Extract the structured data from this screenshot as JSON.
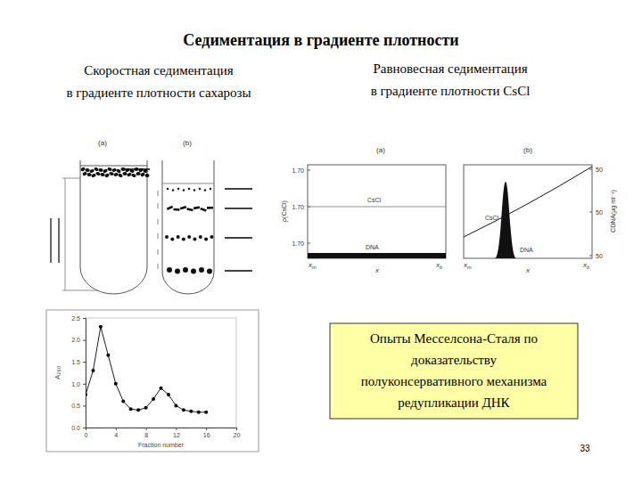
{
  "title": "Седиментация в градиенте плотности",
  "left_heading": [
    "Скоростная седиментация",
    "в градиенте плотности сахарозы"
  ],
  "right_heading": [
    "Равновесная седиментация",
    "в градиенте плотности CsCl"
  ],
  "tubes": {
    "labels": [
      "(a)",
      "(b)"
    ]
  },
  "cscl_panels": [
    {
      "label": "(a)",
      "y_title": "ρ(CsCl)",
      "y_labels": [
        "1.70",
        "1.70",
        "1.70"
      ],
      "x_title": "x",
      "x_left": "xm",
      "x_right": "xb",
      "curve_label": "CsCl",
      "band_label": "DNA"
    },
    {
      "label": "(b)",
      "y2_title": "CDNA(μg ml⁻¹)",
      "y2_labels": [
        "50",
        "50",
        "50"
      ],
      "x_title": "x",
      "x_left": "xm",
      "x_right": "xb",
      "curve_label": "CsCl",
      "band_label": "DNA"
    }
  ],
  "chart_data": {
    "type": "line",
    "x_label": "Fraction number",
    "y_label": "A₂₆₀",
    "x": [
      0,
      1,
      2,
      3,
      4,
      5,
      6,
      7,
      8,
      9,
      10,
      11,
      12,
      13,
      14,
      15,
      16
    ],
    "values": [
      0.75,
      1.3,
      2.3,
      1.65,
      1.0,
      0.6,
      0.42,
      0.4,
      0.45,
      0.65,
      0.9,
      0.75,
      0.5,
      0.4,
      0.37,
      0.35,
      0.35
    ],
    "xlim": [
      0,
      20
    ],
    "xticks": [
      0,
      4,
      8,
      12,
      16,
      20
    ],
    "ylim": [
      0,
      2.5
    ],
    "yticks": [
      {
        "value": 0,
        "label": "0.0"
      },
      0.5,
      {
        "value": 1,
        "label": "1.0"
      },
      1.5,
      {
        "value": 2,
        "label": "2.0"
      },
      2.5
    ],
    "color": "#000000",
    "marker": "circle",
    "line_style": "solid"
  },
  "note": [
    "Опыты Месселсона-Сталя по",
    "доказательству",
    "полуконсервативного механизма",
    "редупликации ДНК"
  ],
  "page_number": "33"
}
